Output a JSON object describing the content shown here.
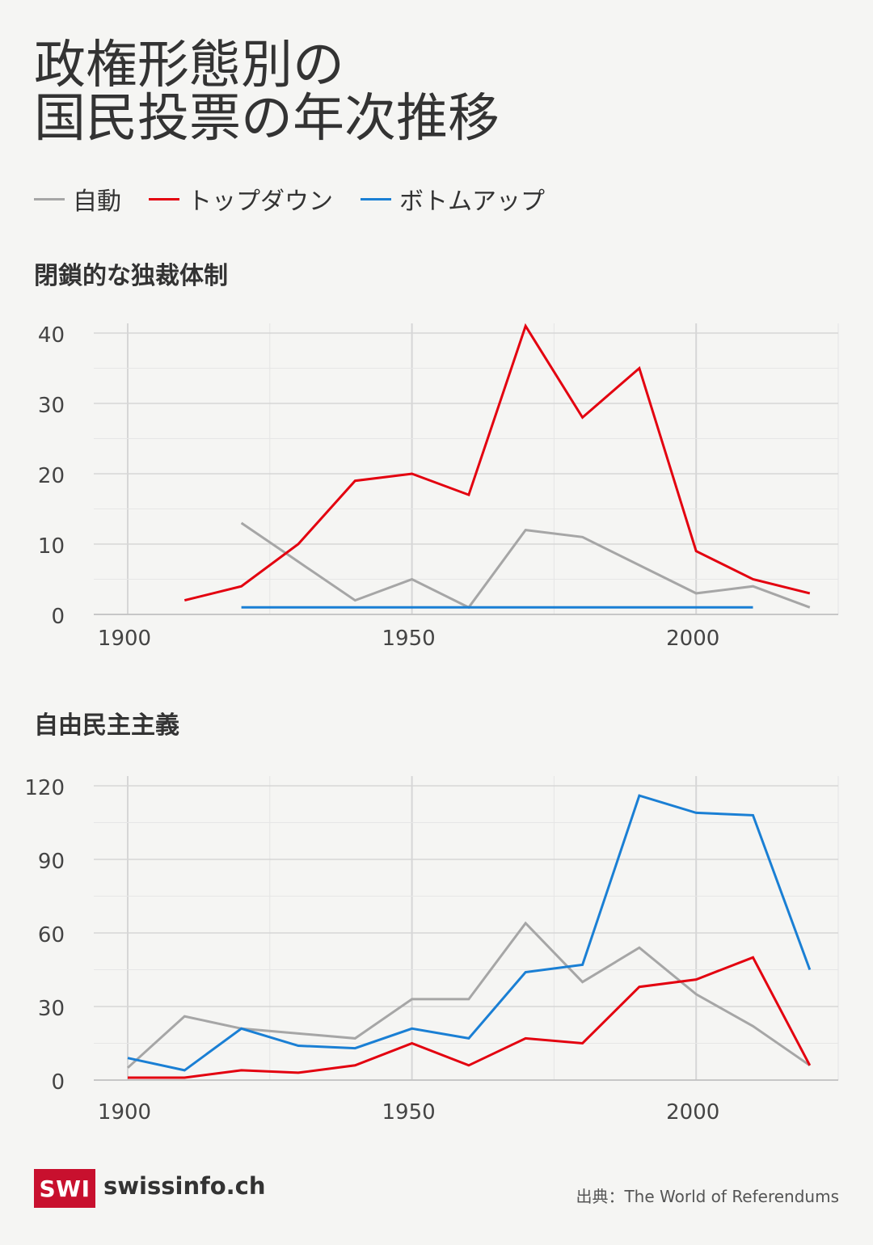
{
  "title": [
    "政権形態別の",
    "国民投票の年次推移"
  ],
  "legend": [
    {
      "name": "自動",
      "color": "#a6a6a6"
    },
    {
      "name": "トップダウン",
      "color": "#e3000f"
    },
    {
      "name": "ボトムアップ",
      "color": "#1a7fd4"
    }
  ],
  "chart_data": [
    {
      "type": "line",
      "title": "閉鎖的な独裁体制",
      "xlim": [
        1900,
        2025
      ],
      "ylim": [
        0,
        40
      ],
      "xticks": [
        1900,
        1950,
        2000
      ],
      "yticks": [
        0,
        10,
        20,
        30,
        40
      ],
      "grid": true,
      "series": [
        {
          "name": "自動",
          "color": "#a6a6a6",
          "x": [
            1920,
            1930,
            1940,
            1950,
            1960,
            1970,
            1980,
            1990,
            2000,
            2010,
            2020
          ],
          "y": [
            13,
            7.5,
            2,
            5,
            1,
            12,
            11,
            7,
            3,
            4,
            1
          ]
        },
        {
          "name": "トップダウン",
          "color": "#e3000f",
          "x": [
            1910,
            1920,
            1930,
            1940,
            1950,
            1960,
            1970,
            1980,
            1990,
            2000,
            2010,
            2020
          ],
          "y": [
            2,
            4,
            10,
            19,
            20,
            17,
            41,
            28,
            35,
            9,
            5,
            3
          ]
        },
        {
          "name": "ボトムアップ",
          "color": "#1a7fd4",
          "x": [
            1920,
            1930,
            1940,
            1950,
            1960,
            1970,
            1980,
            1990,
            2000,
            2010
          ],
          "y": [
            1,
            1,
            1,
            1,
            1,
            1,
            1,
            1,
            1,
            1
          ]
        }
      ]
    },
    {
      "type": "line",
      "title": "自由民主主義",
      "xlim": [
        1900,
        2025
      ],
      "ylim": [
        0,
        120
      ],
      "xticks": [
        1900,
        1950,
        2000
      ],
      "yticks": [
        0,
        30,
        60,
        90,
        120
      ],
      "grid": true,
      "series": [
        {
          "name": "自動",
          "color": "#a6a6a6",
          "x": [
            1900,
            1910,
            1920,
            1930,
            1940,
            1950,
            1960,
            1970,
            1980,
            1990,
            2000,
            2010,
            2020
          ],
          "y": [
            5,
            26,
            21,
            19,
            17,
            33,
            33,
            64,
            40,
            54,
            35,
            22,
            6
          ]
        },
        {
          "name": "トップダウン",
          "color": "#e3000f",
          "x": [
            1900,
            1910,
            1920,
            1930,
            1940,
            1950,
            1960,
            1970,
            1980,
            1990,
            2000,
            2010,
            2020
          ],
          "y": [
            1,
            1,
            4,
            3,
            6,
            15,
            6,
            17,
            15,
            38,
            41,
            50,
            6
          ]
        },
        {
          "name": "ボトムアップ",
          "color": "#1a7fd4",
          "x": [
            1900,
            1910,
            1920,
            1930,
            1940,
            1950,
            1960,
            1970,
            1980,
            1990,
            2000,
            2010,
            2020
          ],
          "y": [
            9,
            4,
            21,
            14,
            13,
            21,
            17,
            44,
            47,
            116,
            109,
            108,
            45
          ]
        }
      ]
    }
  ],
  "footer": {
    "logo_mark": "SWI",
    "logo_text": "swissinfo.ch",
    "source": "出典：The World of Referendums"
  }
}
